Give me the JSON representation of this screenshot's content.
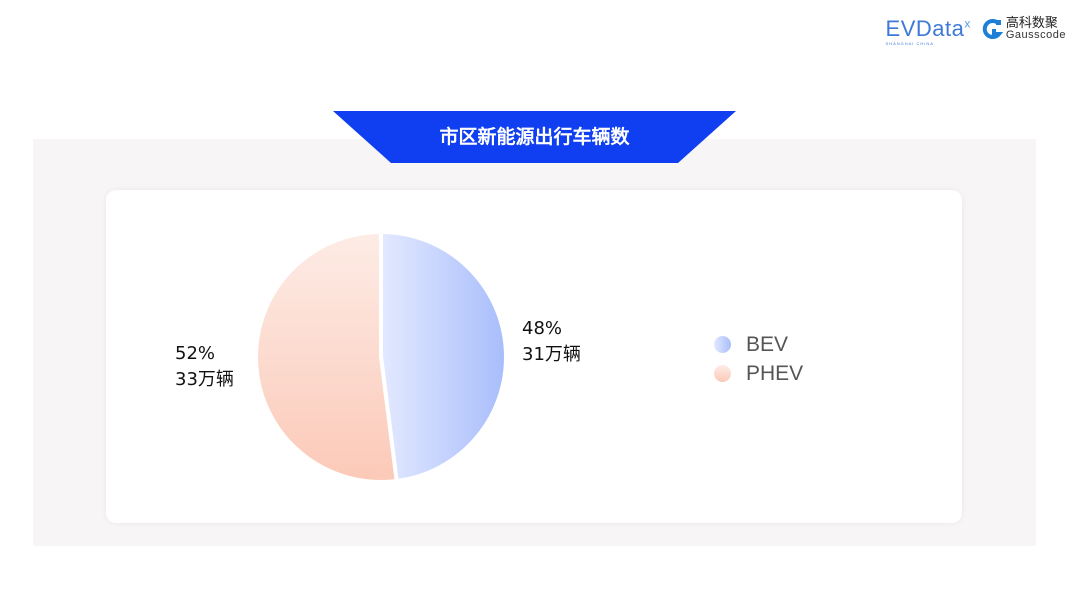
{
  "logos": {
    "evdata": "EVData",
    "evdata_sub": "SHANGHAI CHINA",
    "gauss_cn": "高科数聚",
    "gauss_en": "Gausscode"
  },
  "title": "市区新能源出行车辆数",
  "colors": {
    "banner": "#0f3ff0",
    "bev_from": "#e3e9ff",
    "bev_to": "#a8bdfb",
    "phev_from": "#fdece6",
    "phev_to": "#fcc9b8"
  },
  "chart_data": {
    "type": "pie",
    "title": "市区新能源出行车辆数",
    "legend_position": "right",
    "series": [
      {
        "name": "BEV",
        "percent": 48,
        "value_label": "31万辆",
        "pct_label": "48%"
      },
      {
        "name": "PHEV",
        "percent": 52,
        "value_label": "33万辆",
        "pct_label": "52%"
      }
    ]
  }
}
